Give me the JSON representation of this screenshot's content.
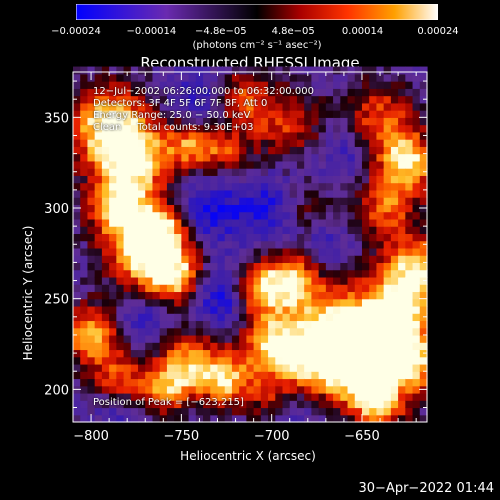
{
  "chart_data": {
    "type": "heatmap",
    "title": "Reconstructed RHESSI Image",
    "xlabel": "Heliocentric X (arcsec)",
    "ylabel": "Heliocentric Y (arcsec)",
    "xlim": [
      -810,
      -614
    ],
    "ylim": [
      182,
      375
    ],
    "x_ticks": [
      -800,
      -750,
      -700,
      -650
    ],
    "y_ticks": [
      200,
      250,
      300,
      350
    ],
    "x_tick_labels": [
      "−800",
      "−750",
      "−700",
      "−650"
    ],
    "y_tick_labels": [
      "200",
      "250",
      "300",
      "350"
    ],
    "colorbar": {
      "range": [
        -0.00024,
        0.00024
      ],
      "tick_values": [
        -0.00024,
        -0.00014,
        -4.8e-05,
        4.8e-05,
        0.00014,
        0.00024
      ],
      "tick_labels": [
        "−0.00024",
        "−0.00014",
        "−4.8e−05",
        "4.8e−05",
        "0.00014",
        "0.00024"
      ],
      "unit": "(photons cm⁻² s⁻¹ asec⁻²)"
    },
    "annotations": [
      "12−Jul−2002 06:26:00.000 to 06:32:00.000",
      "Detectors: 3F 4F 5F 6F 7F 8F, Att 0",
      "Energy Range: 25.0 − 50.0 keV",
      "Clean     Total counts: 9.30E+03"
    ],
    "peak_label": "Position of Peak = [−623,215]",
    "peak_position": [
      -623,
      215
    ],
    "colormap": [
      "#0000ff",
      "#5a2a9a",
      "#1a0008",
      "#9a0000",
      "#ff2a00",
      "#ff8c00",
      "#ffd84a",
      "#ffffff"
    ]
  },
  "footer": {
    "timestamp": "30−Apr−2022 01:44"
  }
}
